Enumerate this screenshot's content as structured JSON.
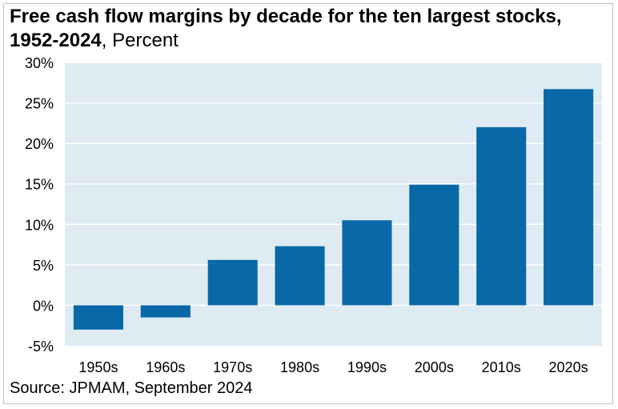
{
  "chart_data": {
    "type": "bar",
    "title": "Free cash flow margins by decade for the ten largest stocks, 1952-2024",
    "subtitle": "Percent",
    "categories": [
      "1950s",
      "1960s",
      "1970s",
      "1980s",
      "1990s",
      "2000s",
      "2010s",
      "2020s"
    ],
    "values": [
      -3.0,
      -1.5,
      5.6,
      7.3,
      10.5,
      14.9,
      22.0,
      26.7
    ],
    "ylim": [
      -5,
      30
    ],
    "yticks": [
      -5,
      0,
      5,
      10,
      15,
      20,
      25,
      30
    ],
    "ytick_labels": [
      "-5%",
      "0%",
      "5%",
      "10%",
      "15%",
      "20%",
      "25%",
      "30%"
    ],
    "grid": true,
    "colors": {
      "bar": "#0868a8",
      "plot_bg": "#deebf3",
      "grid": "#ffffff"
    }
  },
  "source": "Source: JPMAM, September 2024"
}
